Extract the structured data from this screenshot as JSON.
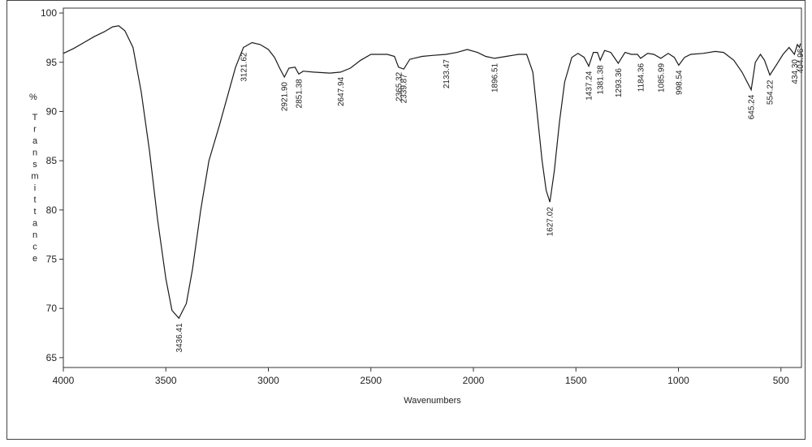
{
  "chart_data": {
    "type": "line",
    "xlabel": "Wavenumbers",
    "ylabel_prefix": "%",
    "ylabel": "Transmittance",
    "xlim": [
      4000,
      400
    ],
    "ylim": [
      64,
      100.5
    ],
    "x_ticks": [
      4000,
      3500,
      3000,
      2500,
      2000,
      1500,
      1000,
      500
    ],
    "y_ticks": [
      65,
      70,
      75,
      80,
      85,
      90,
      95,
      100
    ],
    "grid": false,
    "series": [
      {
        "points": [
          [
            4000,
            95.9
          ],
          [
            3950,
            96.4
          ],
          [
            3900,
            97.0
          ],
          [
            3850,
            97.6
          ],
          [
            3800,
            98.1
          ],
          [
            3760,
            98.6
          ],
          [
            3730,
            98.7
          ],
          [
            3700,
            98.2
          ],
          [
            3660,
            96.5
          ],
          [
            3620,
            92.0
          ],
          [
            3580,
            86.0
          ],
          [
            3540,
            79.0
          ],
          [
            3500,
            73.0
          ],
          [
            3470,
            69.8
          ],
          [
            3436.41,
            69.0
          ],
          [
            3400,
            70.5
          ],
          [
            3370,
            74.0
          ],
          [
            3330,
            80.0
          ],
          [
            3290,
            85.0
          ],
          [
            3240,
            88.5
          ],
          [
            3200,
            91.5
          ],
          [
            3160,
            94.5
          ],
          [
            3121.62,
            96.5
          ],
          [
            3080,
            97.0
          ],
          [
            3040,
            96.8
          ],
          [
            3000,
            96.3
          ],
          [
            2970,
            95.5
          ],
          [
            2945,
            94.4
          ],
          [
            2921.9,
            93.5
          ],
          [
            2900,
            94.4
          ],
          [
            2870,
            94.5
          ],
          [
            2851.38,
            93.8
          ],
          [
            2830,
            94.1
          ],
          [
            2780,
            94.0
          ],
          [
            2700,
            93.9
          ],
          [
            2647.94,
            94.0
          ],
          [
            2600,
            94.4
          ],
          [
            2550,
            95.2
          ],
          [
            2500,
            95.8
          ],
          [
            2420,
            95.8
          ],
          [
            2385,
            95.6
          ],
          [
            2365.32,
            94.5
          ],
          [
            2339.87,
            94.3
          ],
          [
            2310,
            95.3
          ],
          [
            2250,
            95.6
          ],
          [
            2200,
            95.7
          ],
          [
            2133.47,
            95.8
          ],
          [
            2080,
            96.0
          ],
          [
            2030,
            96.3
          ],
          [
            1980,
            96.0
          ],
          [
            1940,
            95.6
          ],
          [
            1896.51,
            95.4
          ],
          [
            1840,
            95.6
          ],
          [
            1780,
            95.8
          ],
          [
            1740,
            95.8
          ],
          [
            1710,
            94.0
          ],
          [
            1690,
            90.0
          ],
          [
            1665,
            85.0
          ],
          [
            1645,
            82.0
          ],
          [
            1627.02,
            80.8
          ],
          [
            1605,
            84.0
          ],
          [
            1580,
            89.0
          ],
          [
            1555,
            93.0
          ],
          [
            1520,
            95.5
          ],
          [
            1490,
            95.9
          ],
          [
            1460,
            95.5
          ],
          [
            1437.24,
            94.6
          ],
          [
            1415,
            96.0
          ],
          [
            1395,
            96.0
          ],
          [
            1381.38,
            95.2
          ],
          [
            1360,
            96.2
          ],
          [
            1330,
            96.0
          ],
          [
            1293.36,
            94.9
          ],
          [
            1260,
            96.0
          ],
          [
            1230,
            95.8
          ],
          [
            1200,
            95.8
          ],
          [
            1184.36,
            95.4
          ],
          [
            1150,
            95.9
          ],
          [
            1120,
            95.8
          ],
          [
            1085.99,
            95.4
          ],
          [
            1050,
            95.9
          ],
          [
            1020,
            95.5
          ],
          [
            998.54,
            94.7
          ],
          [
            970,
            95.5
          ],
          [
            940,
            95.8
          ],
          [
            880,
            95.9
          ],
          [
            820,
            96.1
          ],
          [
            780,
            96.0
          ],
          [
            730,
            95.2
          ],
          [
            690,
            94.0
          ],
          [
            645.24,
            92.2
          ],
          [
            625,
            95.0
          ],
          [
            600,
            95.8
          ],
          [
            580,
            95.2
          ],
          [
            554.22,
            93.7
          ],
          [
            520,
            94.8
          ],
          [
            490,
            95.8
          ],
          [
            460,
            96.5
          ],
          [
            434.3,
            95.8
          ],
          [
            420,
            96.8
          ],
          [
            410,
            96.5
          ],
          [
            404.96,
            96.9
          ]
        ]
      }
    ],
    "peak_labels": [
      {
        "x": 3436.41,
        "y": 69.0,
        "text": "3436.41"
      },
      {
        "x": 3121.62,
        "y": 96.5,
        "text": "3121.62"
      },
      {
        "x": 2921.9,
        "y": 93.5,
        "text": "2921.90"
      },
      {
        "x": 2851.38,
        "y": 93.8,
        "text": "2851.38"
      },
      {
        "x": 2647.94,
        "y": 94.0,
        "text": "2647.94"
      },
      {
        "x": 2365.32,
        "y": 94.5,
        "text": "2365.32"
      },
      {
        "x": 2339.87,
        "y": 94.3,
        "text": "2339.87"
      },
      {
        "x": 2133.47,
        "y": 95.8,
        "text": "2133.47"
      },
      {
        "x": 1896.51,
        "y": 95.4,
        "text": "1896.51"
      },
      {
        "x": 1627.02,
        "y": 80.8,
        "text": "1627.02"
      },
      {
        "x": 1437.24,
        "y": 94.6,
        "text": "1437.24"
      },
      {
        "x": 1381.38,
        "y": 95.2,
        "text": "1381.38"
      },
      {
        "x": 1293.36,
        "y": 94.9,
        "text": "1293.36"
      },
      {
        "x": 1184.36,
        "y": 95.4,
        "text": "1184.36"
      },
      {
        "x": 1085.99,
        "y": 95.4,
        "text": "1085.99"
      },
      {
        "x": 998.54,
        "y": 94.7,
        "text": "998.54"
      },
      {
        "x": 645.24,
        "y": 92.2,
        "text": "645.24"
      },
      {
        "x": 554.22,
        "y": 93.7,
        "text": "554.22"
      },
      {
        "x": 434.3,
        "y": 95.8,
        "text": "434.30"
      },
      {
        "x": 404.96,
        "y": 96.9,
        "text": "404.96"
      }
    ],
    "colors": {
      "line": "#1a1a1a",
      "axis": "#333333"
    }
  }
}
